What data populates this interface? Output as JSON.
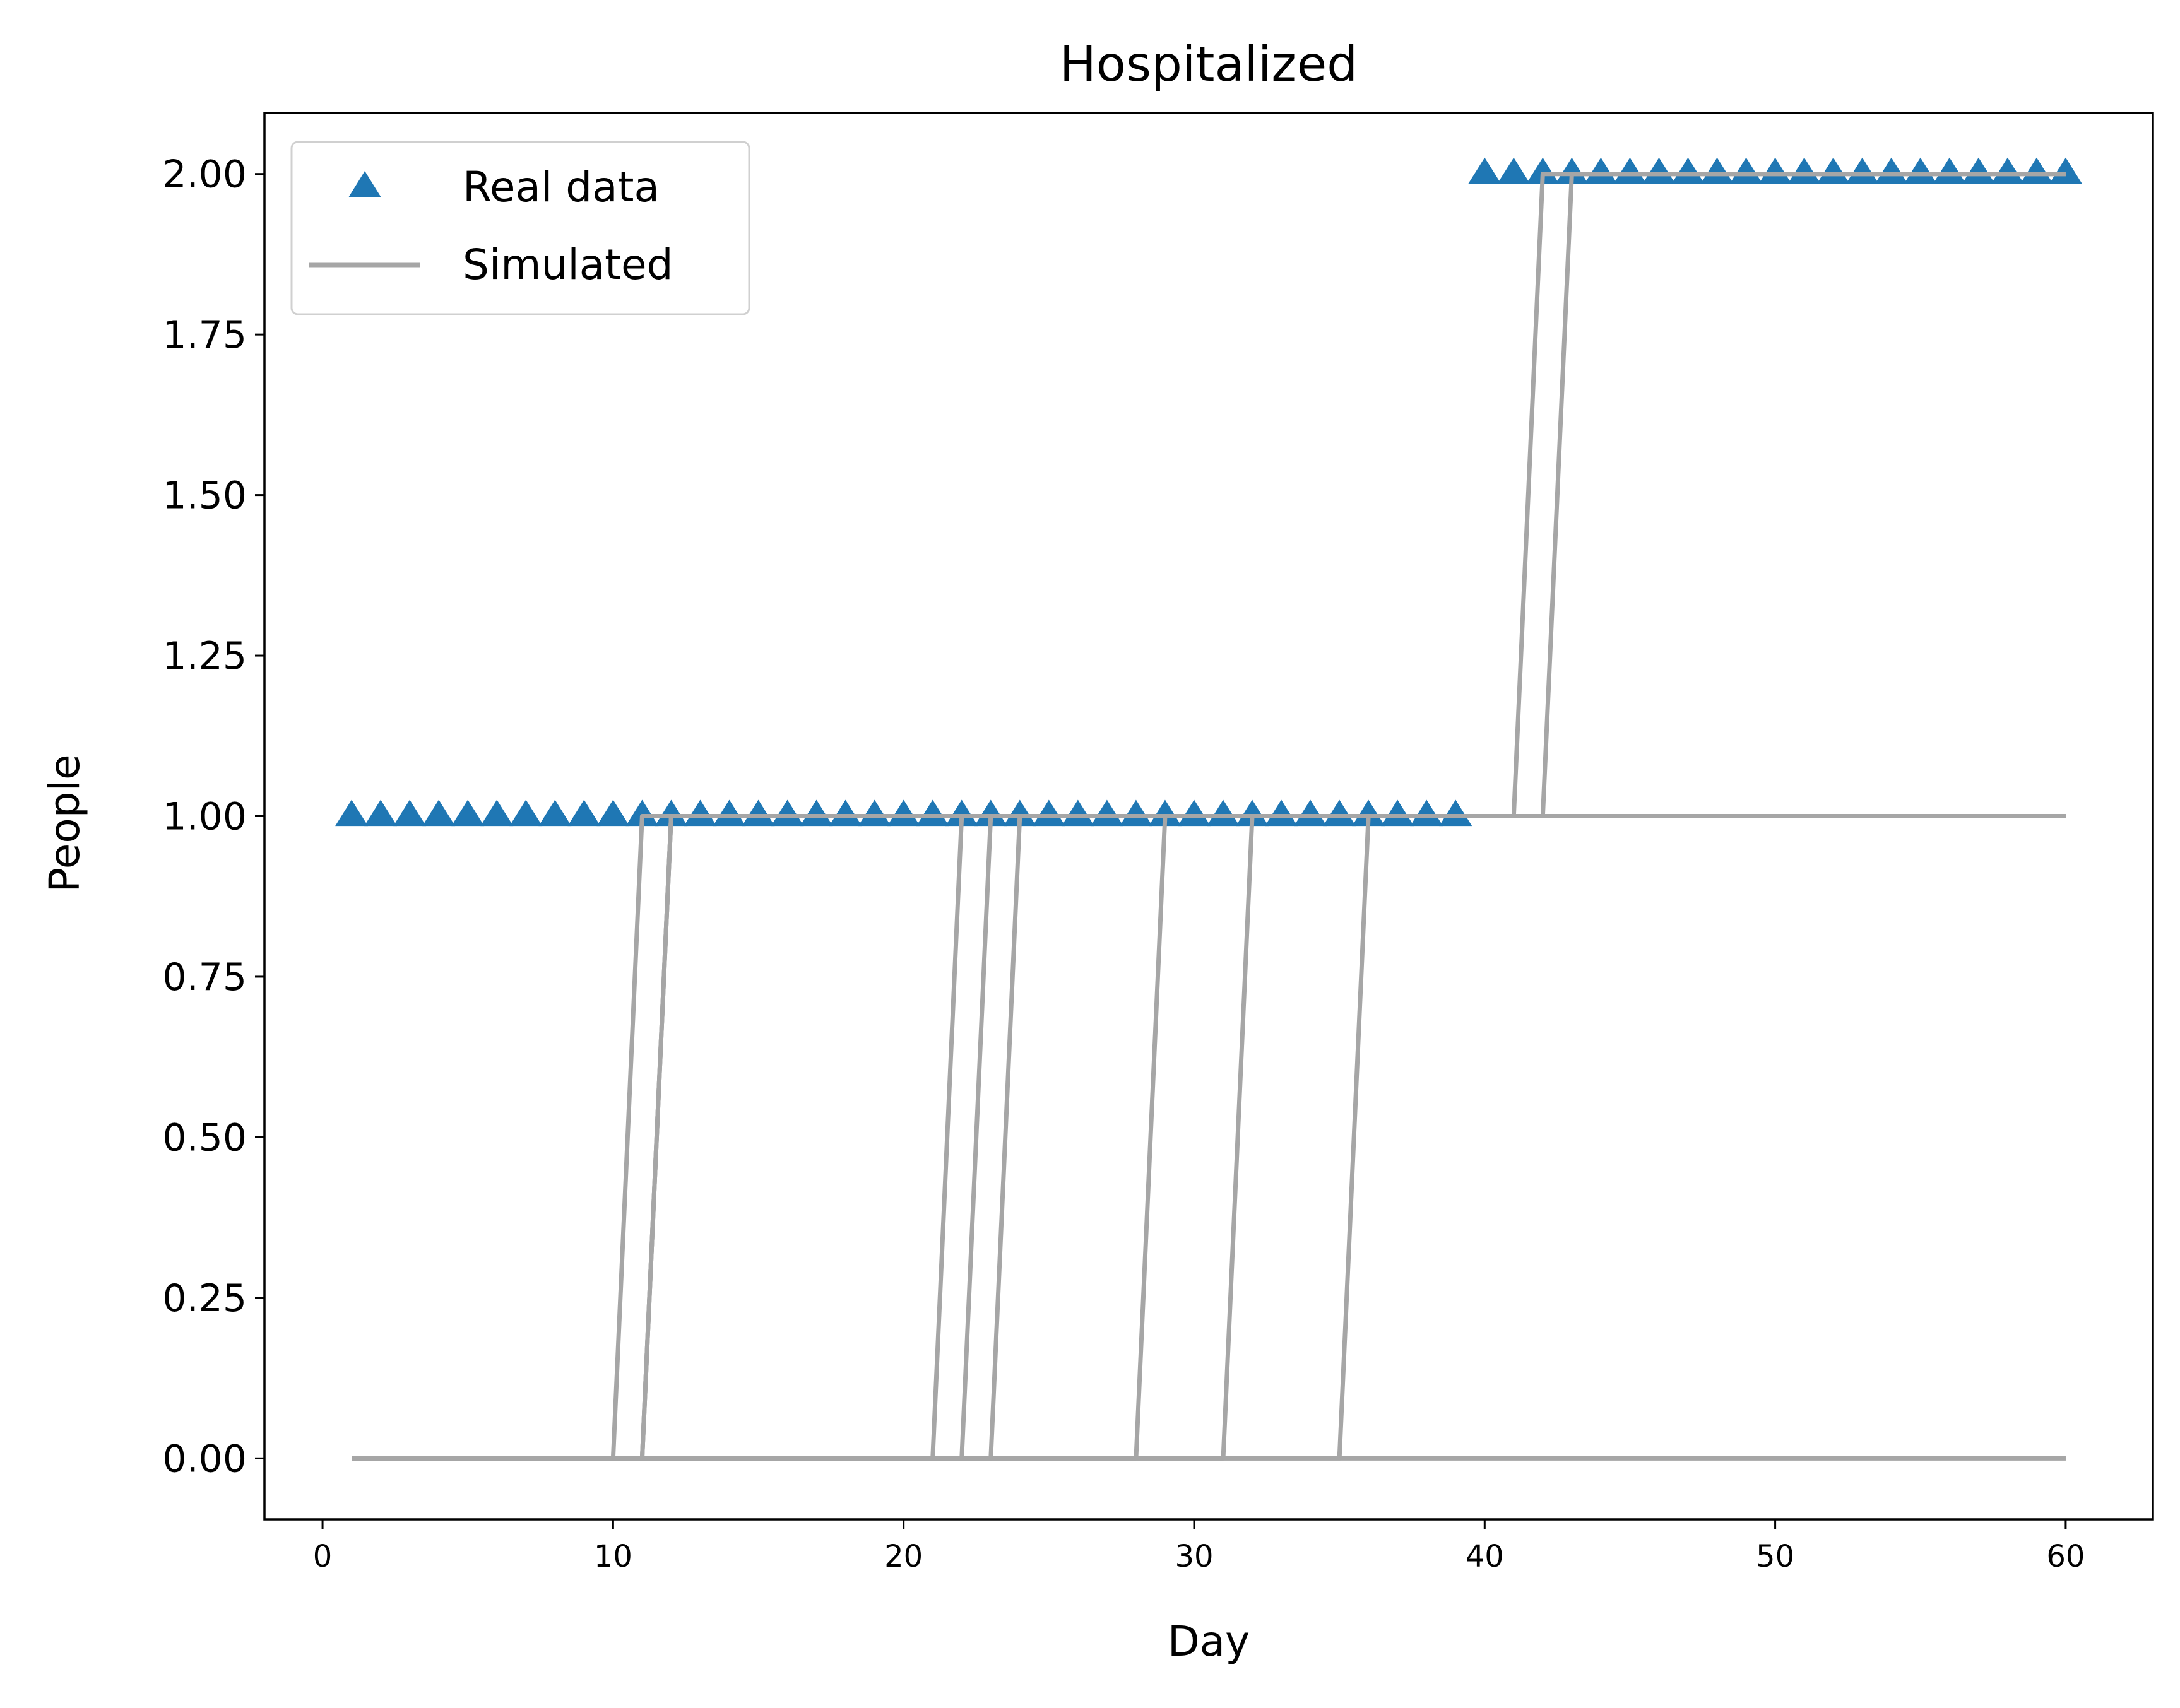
{
  "chart_data": {
    "type": "line",
    "title": "Hospitalized",
    "xlabel": "Day",
    "ylabel": "People",
    "xlim": [
      -2,
      63
    ],
    "ylim": [
      -0.095,
      2.095
    ],
    "xticks": [
      0,
      10,
      20,
      30,
      40,
      50,
      60
    ],
    "xtick_labels": [
      "0",
      "10",
      "20",
      "30",
      "40",
      "50",
      "60"
    ],
    "yticks": [
      0,
      0.25,
      0.5,
      0.75,
      1,
      1.25,
      1.5,
      1.75,
      2
    ],
    "ytick_labels": [
      "0.00",
      "0.25",
      "0.50",
      "0.75",
      "1.00",
      "1.25",
      "1.50",
      "1.75",
      "2.00"
    ],
    "grid": false,
    "legend": {
      "placement": "top-left",
      "entries": [
        {
          "label": "Real data",
          "marker": "triangle-up",
          "color": "#1f77b4"
        },
        {
          "label": "Simulated",
          "marker": "line",
          "color": "#a6a6a6"
        }
      ]
    },
    "real_data": {
      "name": "Real data",
      "color": "#1f77b4",
      "marker": "triangle-up",
      "x": [
        1,
        2,
        3,
        4,
        5,
        6,
        7,
        8,
        9,
        10,
        11,
        12,
        13,
        14,
        15,
        16,
        17,
        18,
        19,
        20,
        21,
        22,
        23,
        24,
        25,
        26,
        27,
        28,
        29,
        30,
        31,
        32,
        33,
        34,
        35,
        36,
        37,
        38,
        39,
        40,
        41,
        42,
        43,
        44,
        45,
        46,
        47,
        48,
        49,
        50,
        51,
        52,
        53,
        54,
        55,
        56,
        57,
        58,
        59,
        60
      ],
      "y": [
        1,
        1,
        1,
        1,
        1,
        1,
        1,
        1,
        1,
        1,
        1,
        1,
        1,
        1,
        1,
        1,
        1,
        1,
        1,
        1,
        1,
        1,
        1,
        1,
        1,
        1,
        1,
        1,
        1,
        1,
        1,
        1,
        1,
        1,
        1,
        1,
        1,
        1,
        1,
        2,
        2,
        2,
        2,
        2,
        2,
        2,
        2,
        2,
        2,
        2,
        2,
        2,
        2,
        2,
        2,
        2,
        2,
        2,
        2,
        2
      ]
    },
    "simulated_color": "#a6a6a6",
    "simulated_runs": [
      {
        "x": [
          1,
          10,
          11,
          60
        ],
        "y": [
          0,
          0,
          1,
          1
        ]
      },
      {
        "x": [
          1,
          11,
          12,
          60
        ],
        "y": [
          0,
          0,
          1,
          1
        ]
      },
      {
        "x": [
          1,
          21,
          22,
          60
        ],
        "y": [
          0,
          0,
          1,
          1
        ]
      },
      {
        "x": [
          1,
          22,
          23,
          60
        ],
        "y": [
          0,
          0,
          1,
          1
        ]
      },
      {
        "x": [
          1,
          23,
          24,
          60
        ],
        "y": [
          0,
          0,
          1,
          1
        ]
      },
      {
        "x": [
          1,
          28,
          29,
          60
        ],
        "y": [
          0,
          0,
          1,
          1
        ]
      },
      {
        "x": [
          1,
          31,
          32,
          60
        ],
        "y": [
          0,
          0,
          1,
          1
        ]
      },
      {
        "x": [
          1,
          35,
          36,
          60
        ],
        "y": [
          0,
          0,
          1,
          1
        ]
      },
      {
        "x": [
          1,
          11,
          12,
          41,
          42,
          60
        ],
        "y": [
          0,
          0,
          1,
          1,
          2,
          2
        ]
      },
      {
        "x": [
          1,
          11,
          12,
          42,
          43,
          60
        ],
        "y": [
          0,
          0,
          1,
          1,
          2,
          2
        ]
      },
      {
        "x": [
          1,
          60
        ],
        "y": [
          0,
          0
        ]
      },
      {
        "x": [
          1,
          60
        ],
        "y": [
          0,
          0
        ]
      }
    ]
  }
}
